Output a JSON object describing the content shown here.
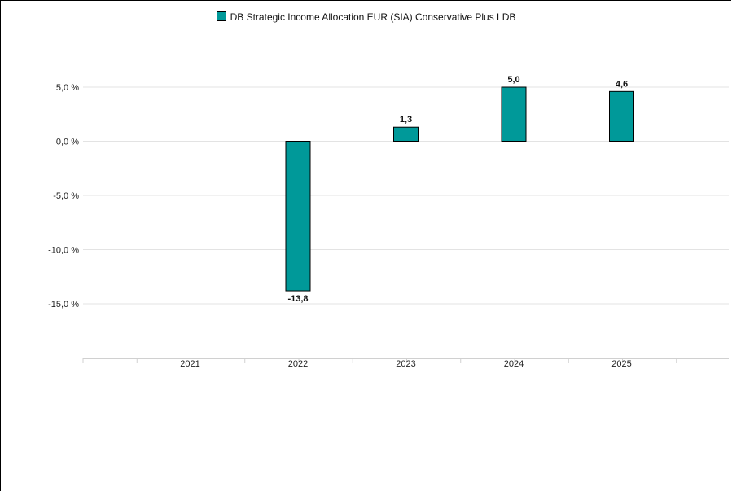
{
  "chart_data": {
    "type": "bar",
    "categories": [
      "2021",
      "2022",
      "2023",
      "2024",
      "2025"
    ],
    "series": [
      {
        "name": "DB Strategic Income Allocation EUR (SIA) Conservative Plus LDB",
        "values": [
          null,
          -13.8,
          1.3,
          5.0,
          4.6
        ],
        "value_labels": [
          "",
          "-13,8",
          "1,3",
          "5,0",
          "4,6"
        ],
        "color": "#009999"
      }
    ],
    "ylim": [
      -20,
      10
    ],
    "yticks": [
      5,
      0,
      -5,
      -10,
      -15
    ],
    "ytick_labels": [
      "5,0 %",
      "0,0 %",
      "-5,0 %",
      "-10,0 %",
      "-15,0 %"
    ],
    "grid": true,
    "legend_position": "top"
  }
}
